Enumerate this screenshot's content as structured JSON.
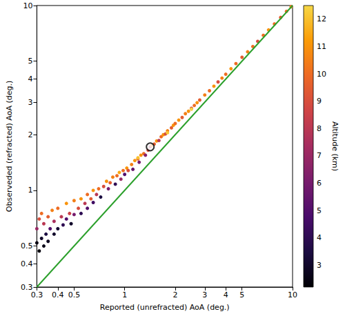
{
  "chart_data": {
    "type": "scatter",
    "x_label": "Reported (unrefracted) AoA (deg.)",
    "y_label": "Observeded (refracted) AoA (deg.)",
    "xlim": [
      0.3,
      10
    ],
    "ylim": [
      0.3,
      10
    ],
    "xticks": [
      0.3,
      0.4,
      0.5,
      1,
      2,
      3,
      4,
      5,
      10
    ],
    "yticks": [
      0.3,
      0.4,
      0.5,
      1,
      2,
      3,
      4,
      5,
      10
    ],
    "log": true,
    "grid": false,
    "series": [
      {
        "type": "scatter",
        "marker": "circle",
        "x": [
          0.3,
          0.3,
          0.31,
          0.31,
          0.32,
          0.32,
          0.33,
          0.33,
          0.34,
          0.35,
          0.35,
          0.36,
          0.37,
          0.38,
          0.38,
          0.4,
          0.4,
          0.42,
          0.43,
          0.45,
          0.45,
          0.47,
          0.48,
          0.5,
          0.5,
          0.53,
          0.55,
          0.55,
          0.58,
          0.6,
          0.6,
          0.63,
          0.65,
          0.65,
          0.68,
          0.7,
          0.72,
          0.75,
          0.78,
          0.8,
          0.82,
          0.85,
          0.88,
          0.9,
          0.93,
          0.95,
          0.98,
          1.0,
          1.03,
          1.05,
          1.1,
          1.12,
          1.15,
          1.2,
          1.2,
          1.22,
          1.25,
          1.3,
          1.33,
          1.38,
          1.42,
          1.45,
          1.5,
          1.55,
          1.6,
          1.65,
          1.7,
          1.75,
          1.8,
          1.8,
          1.9,
          1.95,
          2.0,
          2.1,
          2.2,
          2.3,
          2.4,
          2.5,
          2.5,
          2.6,
          2.7,
          2.8,
          3.0,
          3.2,
          3.4,
          3.6,
          3.8,
          4.0,
          4.3,
          4.6,
          5.0,
          5.4,
          5.8,
          6.2,
          6.7,
          7.2,
          7.8,
          8.5,
          9.2,
          9.8
        ],
        "values": [
          0.52,
          0.62,
          0.47,
          0.7,
          0.55,
          0.75,
          0.5,
          0.66,
          0.58,
          0.72,
          0.53,
          0.62,
          0.78,
          0.58,
          0.68,
          0.62,
          0.8,
          0.72,
          0.65,
          0.85,
          0.7,
          0.75,
          0.66,
          0.88,
          0.74,
          0.8,
          0.9,
          0.75,
          0.85,
          0.95,
          0.8,
          0.9,
          1.0,
          0.86,
          0.95,
          1.02,
          0.92,
          1.05,
          1.12,
          1.02,
          1.1,
          1.18,
          1.08,
          1.2,
          1.25,
          1.15,
          1.28,
          1.22,
          1.32,
          1.28,
          1.38,
          1.3,
          1.45,
          1.48,
          1.5,
          1.42,
          1.55,
          1.58,
          1.55,
          1.65,
          1.72,
          1.75,
          1.78,
          1.85,
          1.86,
          1.95,
          2.0,
          2.02,
          2.1,
          2.05,
          2.18,
          2.25,
          2.3,
          2.4,
          2.48,
          2.6,
          2.68,
          2.78,
          2.75,
          2.88,
          2.98,
          3.08,
          3.28,
          3.46,
          3.66,
          3.86,
          4.05,
          4.25,
          4.55,
          4.85,
          5.25,
          5.62,
          6.0,
          6.4,
          6.9,
          7.38,
          7.95,
          8.62,
          9.3,
          9.85
        ],
        "altitude": [
          2.5,
          7,
          2.4,
          9,
          3,
          10,
          2.6,
          8,
          3.5,
          9.5,
          2.8,
          5,
          10.5,
          3,
          7.5,
          3.2,
          10,
          8,
          4,
          11,
          5,
          8.5,
          3,
          10.5,
          6,
          9,
          11,
          4,
          8,
          10,
          5,
          9.5,
          11,
          4.5,
          8,
          10,
          3.5,
          9,
          11,
          6,
          9.5,
          10.5,
          4,
          10,
          11.5,
          7,
          10,
          5,
          11,
          9,
          10.5,
          5.5,
          11,
          9.5,
          12,
          6,
          11,
          10,
          6.5,
          9,
          7,
          10.5,
          9.5,
          11,
          8,
          10,
          11,
          9,
          10.5,
          12.2,
          9.5,
          11,
          10,
          11,
          9.5,
          10.5,
          11,
          9,
          12.4,
          10,
          11,
          9.5,
          10.5,
          10,
          11,
          9,
          10.5,
          10,
          11,
          10,
          9.5,
          10.5,
          10,
          9,
          10,
          11,
          10,
          9.5,
          10,
          10.5
        ]
      },
      {
        "type": "line",
        "line_style": "solid",
        "color": "#2ca02c",
        "x": [
          0.3,
          10
        ],
        "values": [
          0.3,
          10
        ]
      }
    ],
    "highlight": {
      "x": 1.42,
      "y": 1.72,
      "color": "#000000",
      "marker": "circle"
    },
    "colorbar": {
      "label": "Altitude (km)",
      "range": [
        2.2,
        12.5
      ],
      "ticks": [
        3,
        4,
        5,
        6,
        7,
        8,
        9,
        10,
        11,
        12
      ]
    }
  }
}
